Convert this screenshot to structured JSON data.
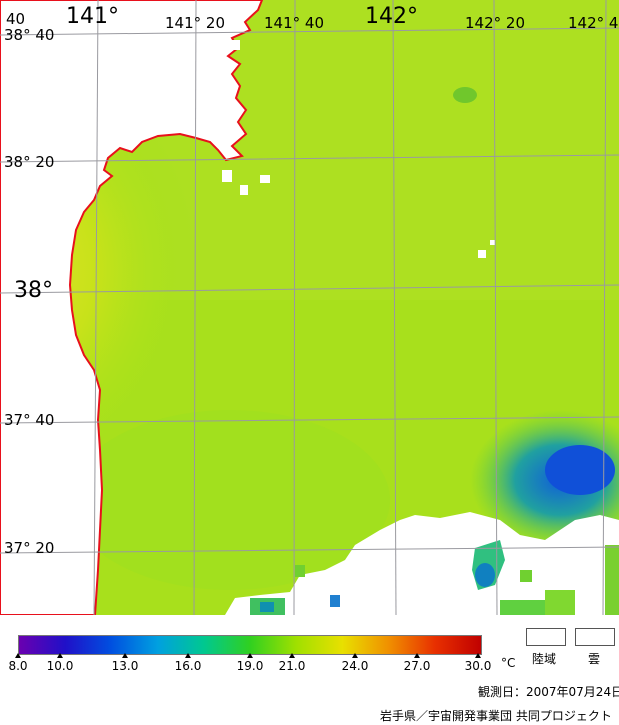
{
  "map": {
    "lon_labels": [
      "141°",
      "141° 20",
      "141° 40",
      "142°",
      "142° 20",
      "142° 4"
    ],
    "lat_labels": [
      "38° 40",
      "38° 20",
      "38°",
      "37° 40",
      "37° 20"
    ],
    "corner_label": "40",
    "land_color": "#ffffff",
    "coast_color": "#e8101c",
    "grid_color": "#9a9aa0"
  },
  "colorbar": {
    "ticks": [
      "8.0",
      "10.0",
      "13.0",
      "16.0",
      "19.0",
      "21.0",
      "24.0",
      "27.0",
      "30.0"
    ],
    "unit": "°C",
    "colors": [
      "#6a00b0",
      "#2010c8",
      "#0050e0",
      "#00a0e0",
      "#00c890",
      "#30d020",
      "#a0e000",
      "#e8e000",
      "#f09000",
      "#e83000",
      "#c00000"
    ]
  },
  "legend": {
    "land_label": "陸域",
    "cloud_label": "雲"
  },
  "footer": {
    "observation_date": "観測日：2007年07月24日",
    "credit": "岩手県／宇宙開発事業団  共同プロジェクト"
  }
}
